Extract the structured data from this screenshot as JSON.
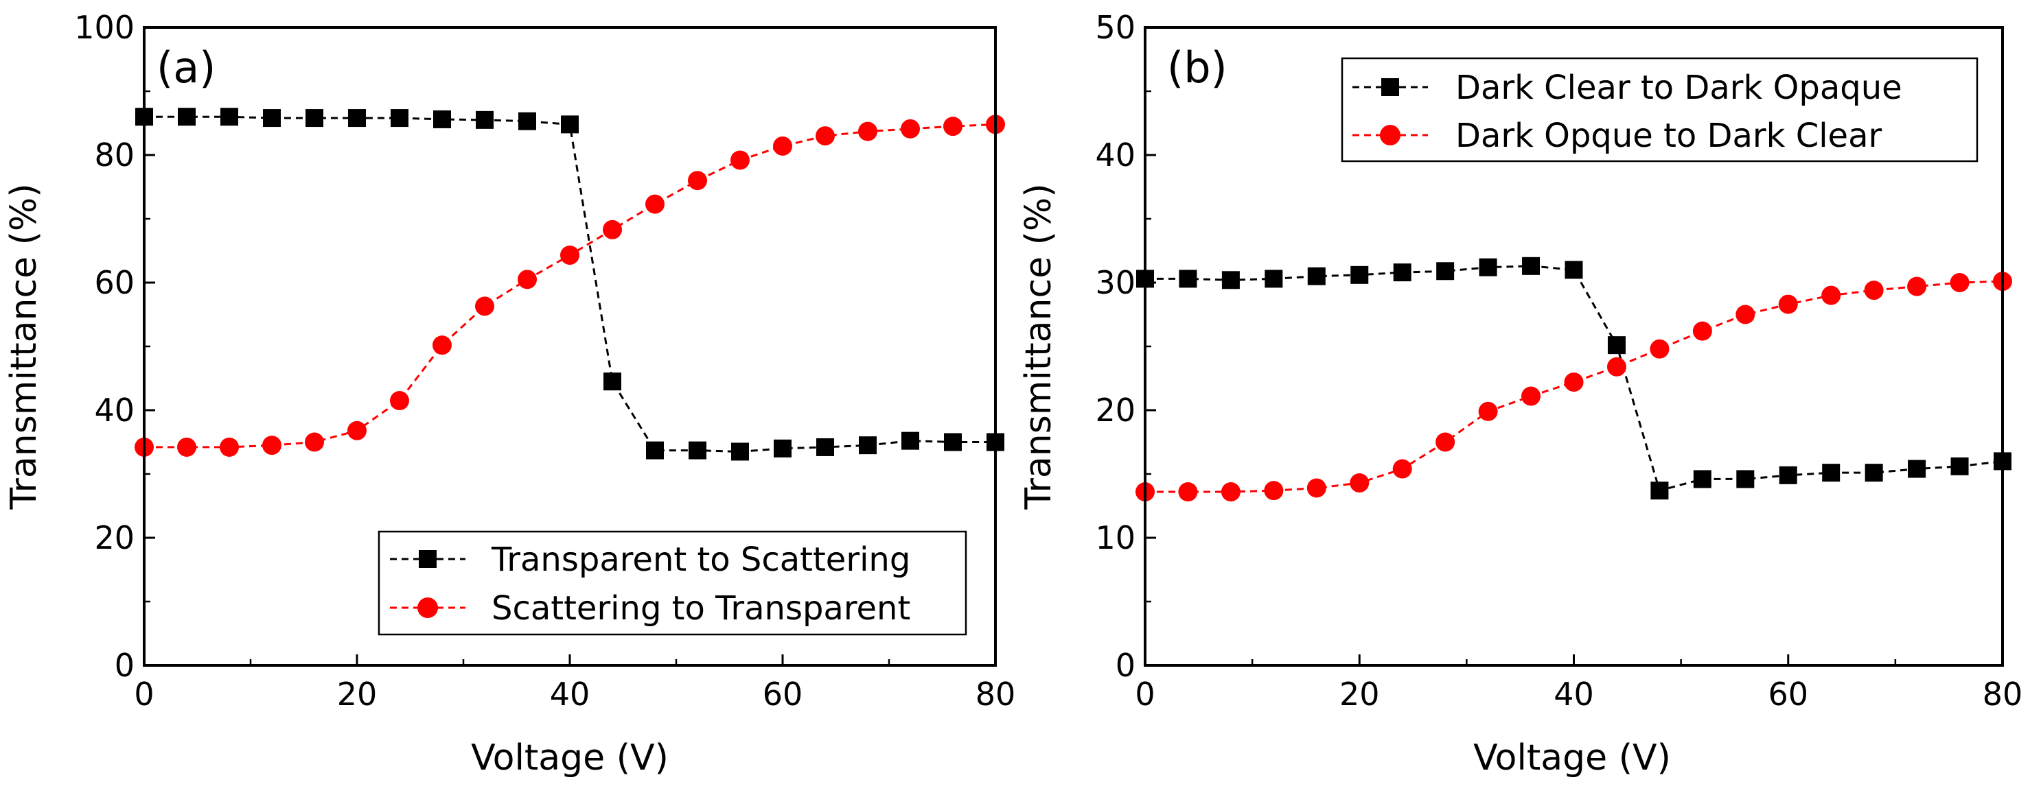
{
  "chart_data": [
    {
      "type": "line",
      "panel_label": "(a)",
      "xlabel": "Voltage (V)",
      "ylabel": "Transmittance (%)",
      "xlim": [
        0,
        80
      ],
      "ylim": [
        0,
        100
      ],
      "xticks": [
        0,
        20,
        40,
        60,
        80
      ],
      "yticks": [
        0,
        20,
        40,
        60,
        80,
        100
      ],
      "legend_position": "lower-right",
      "series": [
        {
          "name": "Transparent to Scattering",
          "color": "#000000",
          "marker": "square",
          "x": [
            0,
            4,
            8,
            12,
            16,
            20,
            24,
            28,
            32,
            36,
            40,
            44,
            48,
            52,
            56,
            60,
            64,
            68,
            72,
            76,
            80
          ],
          "y": [
            86,
            86,
            86,
            85.8,
            85.8,
            85.8,
            85.8,
            85.6,
            85.5,
            85.3,
            84.8,
            44.5,
            33.7,
            33.7,
            33.5,
            34,
            34.2,
            34.5,
            35.2,
            35,
            35
          ]
        },
        {
          "name": "Scattering to Transparent",
          "color": "#ff0000",
          "marker": "circle",
          "x": [
            0,
            4,
            8,
            12,
            16,
            20,
            24,
            28,
            32,
            36,
            40,
            44,
            48,
            52,
            56,
            60,
            64,
            68,
            72,
            76,
            80
          ],
          "y": [
            34.2,
            34.2,
            34.2,
            34.5,
            35,
            36.8,
            41.5,
            50.2,
            56.3,
            60.5,
            64.3,
            68.3,
            72.3,
            76,
            79.2,
            81.4,
            83,
            83.7,
            84.1,
            84.5,
            84.8
          ]
        }
      ]
    },
    {
      "type": "line",
      "panel_label": "(b)",
      "xlabel": "Voltage (V)",
      "ylabel": "Transmittance (%)",
      "xlim": [
        0,
        80
      ],
      "ylim": [
        0,
        50
      ],
      "xticks": [
        0,
        20,
        40,
        60,
        80
      ],
      "yticks": [
        0,
        10,
        20,
        30,
        40,
        50
      ],
      "legend_position": "upper-right",
      "series": [
        {
          "name": "Dark Clear to Dark Opaque",
          "color": "#000000",
          "marker": "square",
          "x": [
            0,
            4,
            8,
            12,
            16,
            20,
            24,
            28,
            32,
            36,
            40,
            44,
            48,
            52,
            56,
            60,
            64,
            68,
            72,
            76,
            80
          ],
          "y": [
            30.3,
            30.3,
            30.2,
            30.3,
            30.5,
            30.6,
            30.8,
            30.9,
            31.2,
            31.3,
            31,
            25.1,
            13.7,
            14.6,
            14.6,
            14.9,
            15.1,
            15.1,
            15.4,
            15.6,
            16
          ]
        },
        {
          "name": "Dark Opque to Dark Clear",
          "color": "#ff0000",
          "marker": "circle",
          "x": [
            0,
            4,
            8,
            12,
            16,
            20,
            24,
            28,
            32,
            36,
            40,
            44,
            48,
            52,
            56,
            60,
            64,
            68,
            72,
            76,
            80
          ],
          "y": [
            13.6,
            13.6,
            13.6,
            13.7,
            13.9,
            14.3,
            15.4,
            17.5,
            19.9,
            21.1,
            22.2,
            23.4,
            24.8,
            26.2,
            27.5,
            28.3,
            29,
            29.4,
            29.7,
            30,
            30.1
          ]
        }
      ]
    }
  ]
}
